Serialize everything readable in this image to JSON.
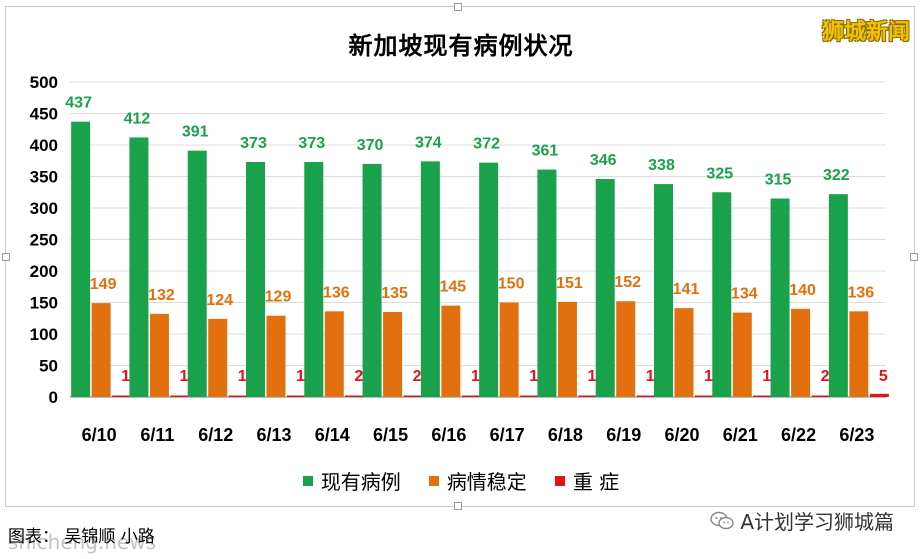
{
  "brand": {
    "label": "狮城新闻"
  },
  "caption": {
    "text": "图表： 吴锦顺 小路",
    "watermark": "shicheng.news"
  },
  "source": {
    "label": "A计划学习狮城篇",
    "icon": "wechat-icon"
  },
  "chart_data": {
    "type": "bar",
    "title": "新加坡现有病例状况",
    "categories": [
      "6/10",
      "6/11",
      "6/12",
      "6/13",
      "6/14",
      "6/15",
      "6/16",
      "6/17",
      "6/18",
      "6/19",
      "6/20",
      "6/21",
      "6/22",
      "6/23"
    ],
    "series": [
      {
        "name": "现有病例",
        "color": "#1aa14c",
        "label_color": "#1aa14c",
        "values": [
          437,
          412,
          391,
          373,
          373,
          370,
          374,
          372,
          361,
          346,
          338,
          325,
          315,
          322
        ]
      },
      {
        "name": "病情稳定",
        "color": "#e2700f",
        "label_color": "#e2700f",
        "values": [
          149,
          132,
          124,
          129,
          136,
          135,
          145,
          150,
          151,
          152,
          141,
          134,
          140,
          136
        ]
      },
      {
        "name": "重 症",
        "color": "#e3131b",
        "label_color": "#e3131b",
        "values": [
          1,
          1,
          1,
          1,
          2,
          2,
          1,
          1,
          1,
          1,
          1,
          1,
          2,
          5
        ]
      }
    ],
    "ylim": [
      0,
      500
    ],
    "yticks": [
      0,
      50,
      100,
      150,
      200,
      250,
      300,
      350,
      400,
      450,
      500
    ],
    "grid": true,
    "legend": "bottom"
  }
}
